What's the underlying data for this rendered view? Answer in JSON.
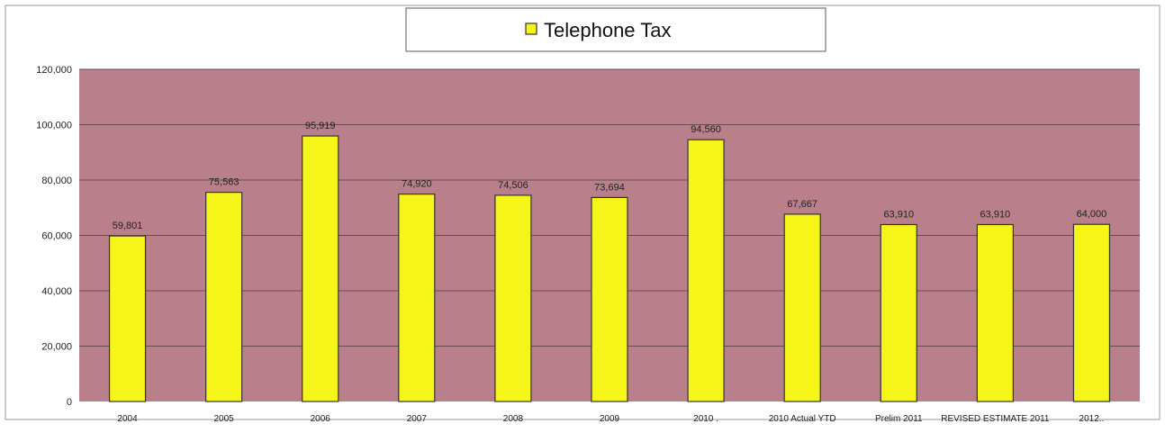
{
  "chart_data": {
    "type": "bar",
    "categories": [
      "2004",
      "2005",
      "2006",
      "2007",
      "2008",
      "2009",
      "2010 .",
      "2010 Actual YTD",
      "Prelim 2011",
      "REVISED ESTIMATE 2011",
      "2012.."
    ],
    "series": [
      {
        "name": "Telephone Tax",
        "values": [
          59801,
          75563,
          95919,
          74920,
          74506,
          73694,
          94560,
          67667,
          63910,
          63910,
          64000
        ],
        "labels": [
          "59,801",
          "75,563",
          "95,919",
          "74,920",
          "74,506",
          "73,694",
          "94,560",
          "67,667",
          "63,910",
          "63,910",
          "64,000"
        ]
      }
    ],
    "y_ticks": [
      "0",
      "20,000",
      "40,000",
      "60,000",
      "80,000",
      "100,000",
      "120,000"
    ],
    "ylim": [
      0,
      120000
    ],
    "grid": true,
    "legend_position": "top-center",
    "colors": {
      "bar_fill": "#f5f51a",
      "bar_stroke": "#333333",
      "plot_background": "#b9808c",
      "gridline": "#6a4a52"
    }
  }
}
